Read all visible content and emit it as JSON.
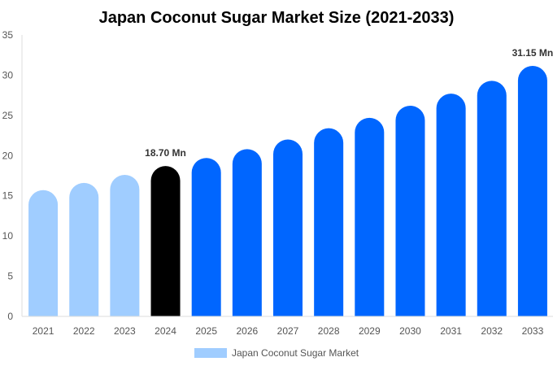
{
  "chart_data": {
    "type": "bar",
    "title": "Japan Coconut Sugar Market Size (2021-2033)",
    "categories": [
      "2021",
      "2022",
      "2023",
      "2024",
      "2025",
      "2026",
      "2027",
      "2028",
      "2029",
      "2030",
      "2031",
      "2032",
      "2033"
    ],
    "series": [
      {
        "name": "Japan Coconut Sugar Market",
        "values": [
          15.7,
          16.6,
          17.6,
          18.7,
          19.7,
          20.8,
          22.0,
          23.4,
          24.7,
          26.2,
          27.7,
          29.3,
          31.15
        ]
      }
    ],
    "data_labels": [
      {
        "index": 3,
        "text": "18.70 Mn"
      },
      {
        "index": 12,
        "text": "31.15 Mn"
      }
    ],
    "ylim": [
      0,
      35
    ],
    "yticks": [
      0,
      5,
      10,
      15,
      20,
      25,
      30,
      35
    ],
    "xlabel": "",
    "ylabel": "",
    "grid": false,
    "legend": "bottom",
    "colors": {
      "historical": "#a0cdff",
      "current": "#000000",
      "forecast": "#0066ff"
    },
    "bar_color_groups": [
      "historical",
      "historical",
      "historical",
      "current",
      "forecast",
      "forecast",
      "forecast",
      "forecast",
      "forecast",
      "forecast",
      "forecast",
      "forecast",
      "forecast"
    ]
  }
}
